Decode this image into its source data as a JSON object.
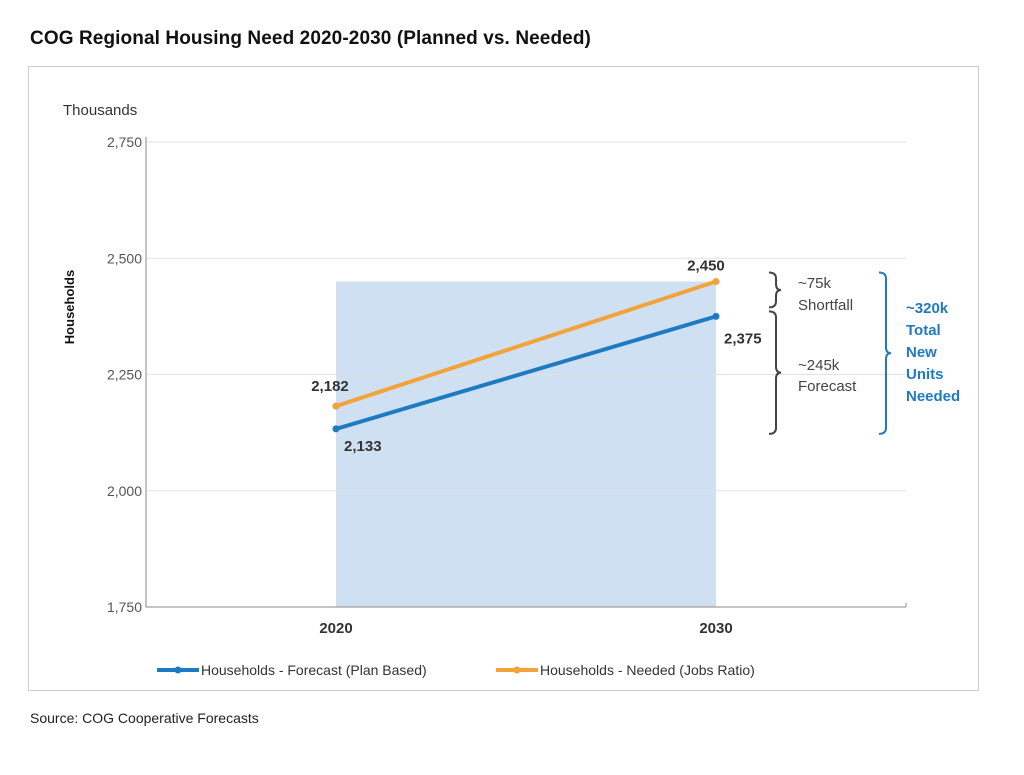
{
  "title": "COG Regional Housing Need 2020-2030 (Planned vs. Needed)",
  "source": "Source: COG Cooperative Forecasts",
  "chart_data": {
    "type": "line",
    "unit_label": "Thousands",
    "ylabel": "Households",
    "xlabel": "",
    "ylim": [
      1750,
      2750
    ],
    "yticks": [
      "1,750",
      "2,000",
      "2,250",
      "2,500",
      "2,750"
    ],
    "ytick_values": [
      1750,
      2000,
      2250,
      2500,
      2750
    ],
    "categories": [
      "2020",
      "2030"
    ],
    "grid": true,
    "legend_position": "bottom",
    "series": [
      {
        "name": "Households - Forecast (Plan Based)",
        "color": "#1f7bc1",
        "values": [
          2133,
          2375
        ],
        "labels": [
          "2,133",
          "2,375"
        ]
      },
      {
        "name": "Households - Needed (Jobs Ratio)",
        "color": "#f2a33a",
        "values": [
          2182,
          2450
        ],
        "labels": [
          "2,182",
          "2,450"
        ]
      }
    ],
    "shaded_region": {
      "x_from": "2020",
      "x_to": "2030",
      "y_top": 2450,
      "color": "#cfe0f3"
    },
    "annotations": {
      "shortfall_value": "~75k",
      "shortfall_text": "Shortfall",
      "forecast_value": "~245k",
      "forecast_text": "Forecast",
      "total_lines": [
        "~320k",
        "Total",
        "New",
        "Units",
        "Needed"
      ],
      "bracket_color_small": "#444444",
      "bracket_color_total": "#1f7bc1"
    }
  }
}
